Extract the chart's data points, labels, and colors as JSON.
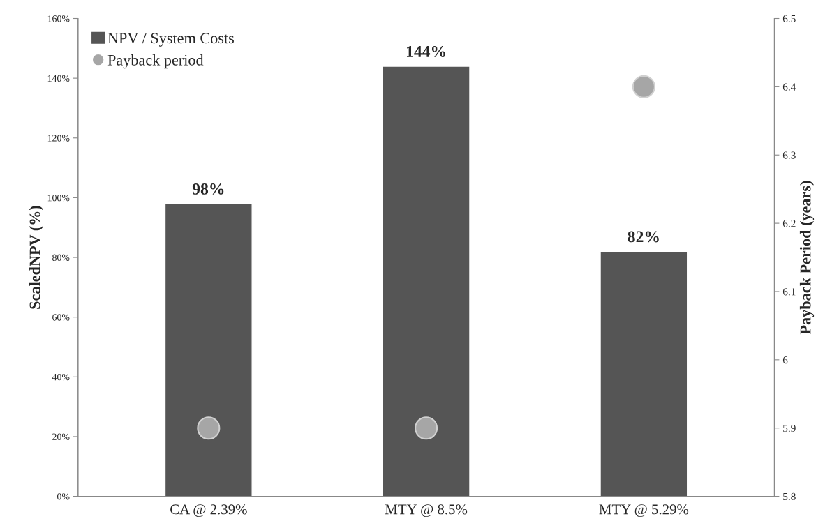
{
  "chart_data": {
    "type": "bar",
    "categories": [
      "CA @ 2.39%",
      "MTY @ 8.5%",
      "MTY @ 5.29%"
    ],
    "series": [
      {
        "name": "NPV / System Costs",
        "color": "#555555",
        "values": [
          98,
          144,
          82
        ],
        "value_labels": [
          "98%",
          "144%",
          "82%"
        ]
      },
      {
        "name": "Payback period",
        "type": "scatter",
        "axis": "y2",
        "color": "#a6a6a6",
        "values": [
          5.9,
          5.9,
          6.4
        ]
      }
    ],
    "ylabel": "ScaledNPV (%)",
    "y2label": "Payback Period (years)",
    "ylim": [
      0,
      160
    ],
    "yticks": [
      {
        "value": 0,
        "label": "0%"
      },
      {
        "value": 20,
        "label": "20%"
      },
      {
        "value": 40,
        "label": "40%"
      },
      {
        "value": 60,
        "label": "60%"
      },
      {
        "value": 80,
        "label": "80%"
      },
      {
        "value": 100,
        "label": "100%"
      },
      {
        "value": 120,
        "label": "120%"
      },
      {
        "value": 140,
        "label": "140%"
      },
      {
        "value": 160,
        "label": "160%"
      }
    ],
    "y2lim": [
      5.8,
      6.5
    ],
    "y2ticks": [
      5.8,
      5.9,
      6,
      6.1,
      6.2,
      6.3,
      6.4,
      6.5
    ],
    "legend": "top left",
    "grid": false,
    "marker": "circle"
  }
}
